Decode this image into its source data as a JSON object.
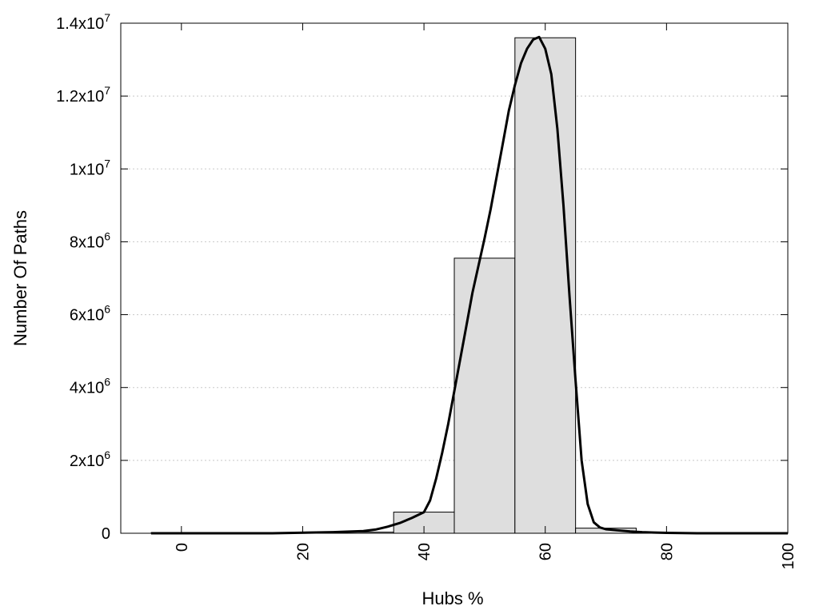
{
  "chart_data": {
    "type": "bar",
    "title": "",
    "xlabel": "Hubs %",
    "ylabel": "Number Of Paths",
    "xlim": [
      -10,
      100
    ],
    "ylim": [
      0,
      14000000
    ],
    "grid": "horizontal dotted",
    "legend": "none",
    "x_ticks": [
      {
        "value": 0,
        "label": "0"
      },
      {
        "value": 20,
        "label": "20"
      },
      {
        "value": 40,
        "label": "40"
      },
      {
        "value": 60,
        "label": "60"
      },
      {
        "value": 80,
        "label": "80"
      },
      {
        "value": 100,
        "label": "100"
      }
    ],
    "y_ticks": [
      {
        "value": 0,
        "base": "0",
        "exp": ""
      },
      {
        "value": 2000000,
        "base": "2x10",
        "exp": "6"
      },
      {
        "value": 4000000,
        "base": "4x10",
        "exp": "6"
      },
      {
        "value": 6000000,
        "base": "6x10",
        "exp": "6"
      },
      {
        "value": 8000000,
        "base": "8x10",
        "exp": "6"
      },
      {
        "value": 10000000,
        "base": "1x10",
        "exp": "7"
      },
      {
        "value": 12000000,
        "base": "1.2x10",
        "exp": "7"
      },
      {
        "value": 14000000,
        "base": "1.4x10",
        "exp": "7"
      }
    ],
    "bar_width": 10,
    "bars": [
      {
        "x": 0,
        "value": 10000
      },
      {
        "x": 10,
        "value": 10000
      },
      {
        "x": 20,
        "value": 10000
      },
      {
        "x": 30,
        "value": 30000
      },
      {
        "x": 40,
        "value": 580000
      },
      {
        "x": 50,
        "value": 7550000
      },
      {
        "x": 60,
        "value": 13600000
      },
      {
        "x": 70,
        "value": 140000
      },
      {
        "x": 80,
        "value": 10000
      },
      {
        "x": 90,
        "value": 10000
      },
      {
        "x": 100,
        "value": 10000
      }
    ],
    "curve": {
      "x": [
        -5,
        5,
        15,
        25,
        30,
        32,
        34,
        36,
        38,
        40,
        41,
        42,
        43,
        44,
        45,
        46,
        47,
        48,
        49,
        50,
        51,
        52,
        53,
        54,
        55,
        56,
        57,
        58,
        59,
        60,
        61,
        62,
        63,
        64,
        65,
        66,
        67,
        68,
        69,
        70,
        72,
        74,
        76,
        78,
        80,
        85,
        90,
        95,
        100
      ],
      "y": [
        0,
        0,
        0,
        30000,
        60000,
        100000,
        180000,
        280000,
        420000,
        580000,
        900000,
        1500000,
        2200000,
        3000000,
        3900000,
        4800000,
        5700000,
        6600000,
        7350000,
        8100000,
        8900000,
        9800000,
        10700000,
        11600000,
        12300000,
        12900000,
        13300000,
        13550000,
        13620000,
        13300000,
        12600000,
        11100000,
        9000000,
        6500000,
        4200000,
        2000000,
        800000,
        300000,
        160000,
        110000,
        80000,
        50000,
        30000,
        20000,
        10000,
        0,
        0,
        0,
        0
      ]
    },
    "colors": {
      "bar_fill": "#dedede",
      "bar_stroke": "#000000",
      "curve": "#000000",
      "grid": "#c8c8c8"
    }
  }
}
